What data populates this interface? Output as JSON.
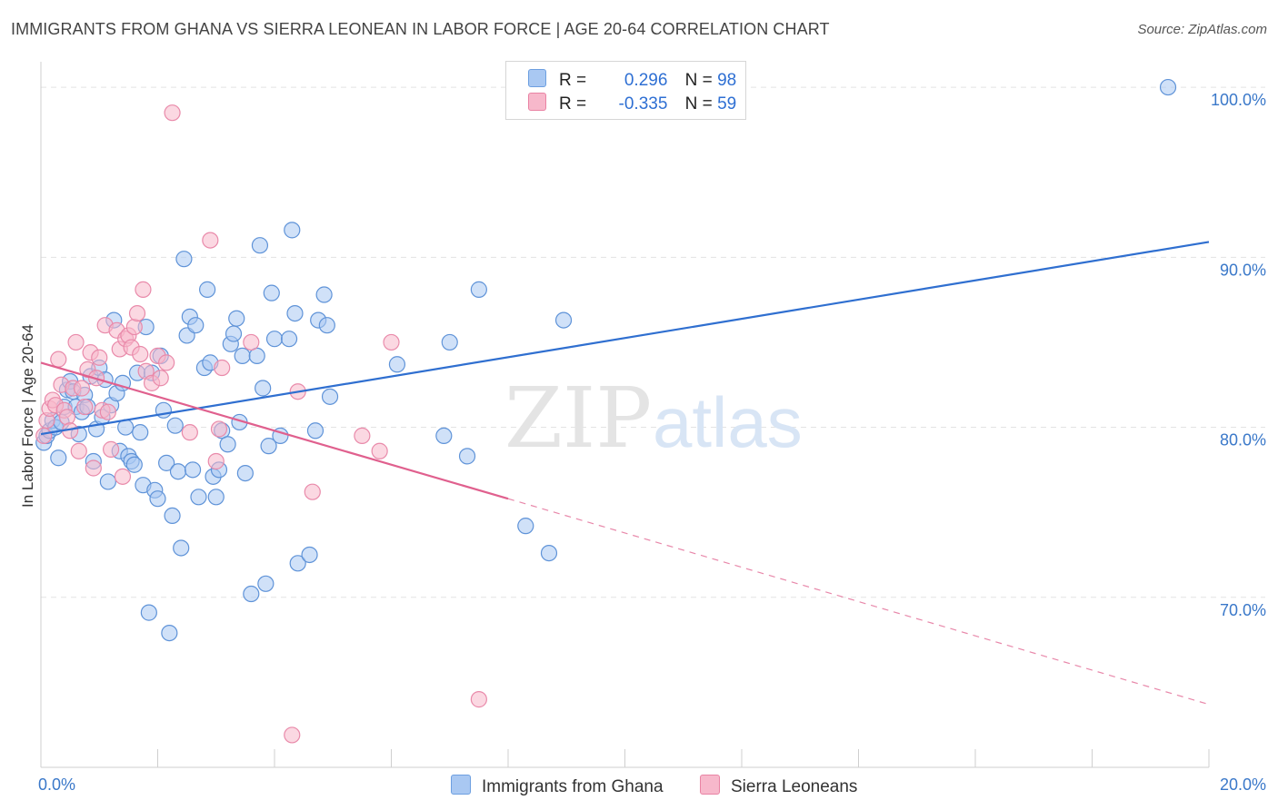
{
  "title": "IMMIGRANTS FROM GHANA VS SIERRA LEONEAN IN LABOR FORCE | AGE 20-64 CORRELATION CHART",
  "source": "Source: ZipAtlas.com",
  "watermark": {
    "zip": "ZIP",
    "atlas": "atlas"
  },
  "legend": {
    "r_label": "R =",
    "n_label": "N =",
    "rows": [
      {
        "r": "0.296",
        "n": "98",
        "color": "#a9c8f2",
        "border": "#6d9fe0"
      },
      {
        "r": "-0.335",
        "n": "59",
        "color": "#f7b8cb",
        "border": "#e983a4"
      }
    ]
  },
  "bottom_legend": [
    {
      "label": "Immigrants from Ghana",
      "color": "#a9c8f2",
      "border": "#6d9fe0"
    },
    {
      "label": "Sierra Leoneans",
      "color": "#f7b8cb",
      "border": "#e983a4"
    }
  ],
  "colors": {
    "ghana_fill": "#a9c8f2",
    "ghana_stroke": "#5f93d8",
    "ghana_line": "#2f6fd0",
    "sierra_fill": "#f7b8cb",
    "sierra_stroke": "#e98aaa",
    "sierra_line": "#e0608e",
    "grid": "#e3e3e3",
    "axis_label": "#3a78c9"
  },
  "chart_data": {
    "type": "scatter",
    "title": "IMMIGRANTS FROM GHANA VS SIERRA LEONEAN IN LABOR FORCE | AGE 20-64 CORRELATION CHART",
    "xlabel": "",
    "ylabel": "In Labor Force | Age 20-64",
    "xlim": [
      0,
      20
    ],
    "ylim": [
      60,
      101.5
    ],
    "x_tick_labels": [
      "0.0%",
      "20.0%"
    ],
    "y_ticks": [
      70,
      80,
      90,
      100
    ],
    "y_tick_labels": [
      "70.0%",
      "80.0%",
      "90.0%",
      "100.0%"
    ],
    "grid": true,
    "legend_position": "top-center",
    "series": [
      {
        "name": "Immigrants from Ghana",
        "r": 0.296,
        "n": 98,
        "trend": {
          "x": [
            0,
            20
          ],
          "y": [
            79.6,
            90.9
          ],
          "style": "solid"
        },
        "points": [
          [
            0.05,
            79.1
          ],
          [
            0.1,
            79.5
          ],
          [
            0.15,
            79.8
          ],
          [
            0.2,
            80.4
          ],
          [
            0.25,
            80.0
          ],
          [
            0.3,
            78.2
          ],
          [
            0.35,
            80.3
          ],
          [
            0.4,
            81.2
          ],
          [
            0.45,
            82.2
          ],
          [
            0.5,
            82.7
          ],
          [
            0.55,
            82.1
          ],
          [
            0.6,
            81.2
          ],
          [
            0.65,
            79.6
          ],
          [
            0.7,
            80.9
          ],
          [
            0.75,
            81.9
          ],
          [
            0.8,
            81.2
          ],
          [
            0.85,
            83.0
          ],
          [
            0.9,
            78.0
          ],
          [
            0.95,
            79.9
          ],
          [
            1.0,
            83.5
          ],
          [
            1.05,
            80.6
          ],
          [
            1.1,
            82.8
          ],
          [
            1.15,
            76.8
          ],
          [
            1.2,
            81.3
          ],
          [
            1.25,
            86.3
          ],
          [
            1.3,
            82.0
          ],
          [
            1.35,
            78.6
          ],
          [
            1.4,
            82.6
          ],
          [
            1.45,
            80.0
          ],
          [
            1.5,
            78.3
          ],
          [
            1.55,
            78.0
          ],
          [
            1.6,
            77.8
          ],
          [
            1.65,
            83.2
          ],
          [
            1.7,
            79.7
          ],
          [
            1.75,
            76.6
          ],
          [
            1.8,
            85.9
          ],
          [
            1.85,
            69.1
          ],
          [
            1.9,
            83.2
          ],
          [
            1.95,
            76.3
          ],
          [
            2.0,
            75.8
          ],
          [
            2.05,
            84.2
          ],
          [
            2.1,
            81.0
          ],
          [
            2.15,
            77.9
          ],
          [
            2.2,
            67.9
          ],
          [
            2.25,
            74.8
          ],
          [
            2.3,
            80.1
          ],
          [
            2.35,
            77.4
          ],
          [
            2.4,
            72.9
          ],
          [
            2.45,
            89.9
          ],
          [
            2.5,
            85.4
          ],
          [
            2.55,
            86.5
          ],
          [
            2.6,
            77.5
          ],
          [
            2.65,
            86.0
          ],
          [
            2.7,
            75.9
          ],
          [
            2.8,
            83.5
          ],
          [
            2.85,
            88.1
          ],
          [
            2.9,
            83.8
          ],
          [
            2.95,
            77.1
          ],
          [
            3.0,
            75.9
          ],
          [
            3.05,
            77.5
          ],
          [
            3.1,
            79.8
          ],
          [
            3.2,
            79.0
          ],
          [
            3.25,
            84.9
          ],
          [
            3.3,
            85.5
          ],
          [
            3.35,
            86.4
          ],
          [
            3.4,
            80.3
          ],
          [
            3.45,
            84.2
          ],
          [
            3.5,
            77.3
          ],
          [
            3.6,
            70.2
          ],
          [
            3.7,
            84.2
          ],
          [
            3.75,
            90.7
          ],
          [
            3.8,
            82.3
          ],
          [
            3.85,
            70.8
          ],
          [
            3.9,
            78.9
          ],
          [
            3.95,
            87.9
          ],
          [
            4.0,
            85.2
          ],
          [
            4.1,
            79.5
          ],
          [
            4.25,
            85.2
          ],
          [
            4.3,
            91.6
          ],
          [
            4.35,
            86.7
          ],
          [
            4.4,
            72.0
          ],
          [
            4.6,
            72.5
          ],
          [
            4.7,
            79.8
          ],
          [
            4.75,
            86.3
          ],
          [
            4.85,
            87.8
          ],
          [
            4.9,
            86.0
          ],
          [
            4.95,
            81.8
          ],
          [
            6.1,
            83.7
          ],
          [
            6.9,
            79.5
          ],
          [
            7.0,
            85.0
          ],
          [
            7.3,
            78.3
          ],
          [
            7.5,
            88.1
          ],
          [
            8.3,
            74.2
          ],
          [
            8.7,
            72.6
          ],
          [
            8.95,
            86.3
          ],
          [
            19.3,
            100.0
          ]
        ]
      },
      {
        "name": "Sierra Leoneans",
        "r": -0.335,
        "n": 59,
        "trend": {
          "x": [
            0,
            8
          ],
          "y": [
            83.8,
            75.8
          ],
          "style": "solid",
          "extension": {
            "x": [
              8,
              20
            ],
            "y": [
              75.8,
              63.7
            ],
            "style": "dashed"
          }
        },
        "points": [
          [
            0.05,
            79.5
          ],
          [
            0.1,
            80.4
          ],
          [
            0.15,
            81.1
          ],
          [
            0.2,
            81.6
          ],
          [
            0.25,
            81.3
          ],
          [
            0.3,
            84.0
          ],
          [
            0.35,
            82.5
          ],
          [
            0.4,
            81.0
          ],
          [
            0.45,
            80.6
          ],
          [
            0.5,
            79.8
          ],
          [
            0.55,
            82.3
          ],
          [
            0.6,
            85.0
          ],
          [
            0.65,
            78.6
          ],
          [
            0.7,
            82.3
          ],
          [
            0.75,
            81.2
          ],
          [
            0.8,
            83.4
          ],
          [
            0.85,
            84.4
          ],
          [
            0.9,
            77.6
          ],
          [
            0.95,
            82.9
          ],
          [
            1.0,
            84.1
          ],
          [
            1.05,
            81.0
          ],
          [
            1.1,
            86.0
          ],
          [
            1.15,
            80.9
          ],
          [
            1.2,
            78.7
          ],
          [
            1.3,
            85.7
          ],
          [
            1.35,
            84.6
          ],
          [
            1.4,
            77.1
          ],
          [
            1.45,
            85.2
          ],
          [
            1.5,
            85.4
          ],
          [
            1.55,
            84.7
          ],
          [
            1.6,
            85.9
          ],
          [
            1.65,
            86.7
          ],
          [
            1.7,
            84.3
          ],
          [
            1.75,
            88.1
          ],
          [
            1.8,
            83.3
          ],
          [
            1.9,
            82.6
          ],
          [
            2.0,
            84.2
          ],
          [
            2.05,
            82.9
          ],
          [
            2.15,
            83.8
          ],
          [
            2.25,
            98.5
          ],
          [
            2.55,
            79.7
          ],
          [
            2.9,
            91.0
          ],
          [
            3.0,
            78.0
          ],
          [
            3.05,
            79.9
          ],
          [
            3.1,
            83.5
          ],
          [
            3.6,
            85.0
          ],
          [
            4.3,
            61.9
          ],
          [
            4.4,
            82.1
          ],
          [
            4.65,
            76.2
          ],
          [
            5.5,
            79.5
          ],
          [
            5.8,
            78.6
          ],
          [
            6.0,
            85.0
          ],
          [
            7.5,
            64.0
          ]
        ]
      }
    ]
  }
}
